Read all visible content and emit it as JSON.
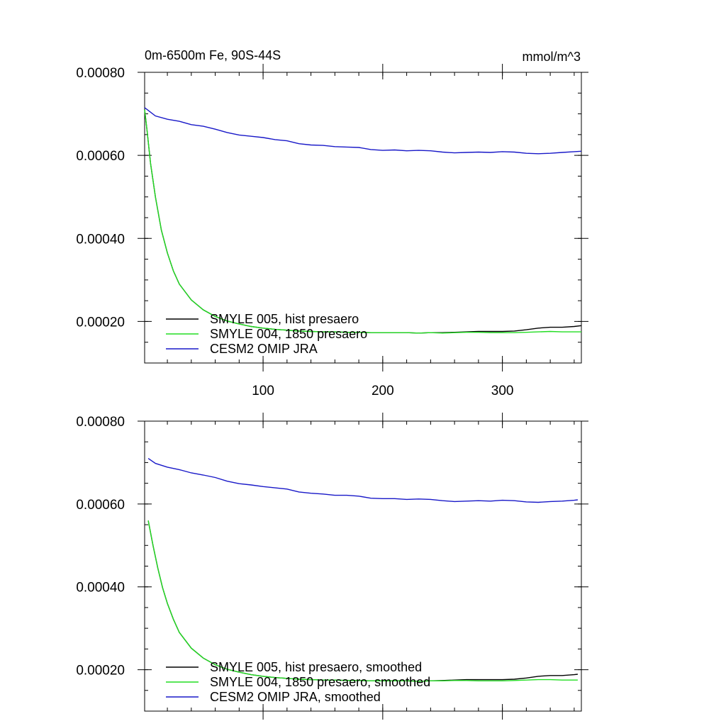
{
  "title_left": "0m-6500m Fe, 90S-44S",
  "title_right": "mmol/m^3",
  "colors": {
    "black": "#000000",
    "green": "#22dd22",
    "blue": "#1818c8"
  },
  "chart_data": [
    {
      "type": "line",
      "title": "0m-6500m Fe, 90S-44S",
      "units": "mmol/m^3",
      "xlim": [
        1,
        366
      ],
      "ylim": [
        0.0001,
        0.0008
      ],
      "x_ticks": [
        100,
        200,
        300
      ],
      "x_tick_labels": [
        "100",
        "200",
        "300"
      ],
      "y_ticks": [
        0.0002,
        0.0004,
        0.0006,
        0.0008
      ],
      "y_tick_labels": [
        "0.00020",
        "0.00040",
        "0.00060",
        "0.00080"
      ],
      "legend_position": "bottom-left",
      "series": [
        {
          "name": "SMYLE 005, hist presaero",
          "color": "#000000",
          "x": [
            1,
            3,
            6,
            10,
            15,
            20,
            25,
            30,
            40,
            50,
            60,
            70,
            80,
            90,
            100,
            110,
            120,
            130,
            140,
            150,
            160,
            170,
            180,
            190,
            200,
            210,
            220,
            230,
            240,
            250,
            260,
            270,
            280,
            290,
            300,
            310,
            320,
            330,
            340,
            350,
            360,
            366
          ],
          "y": [
            0.00071,
            0.00066,
            0.00058,
            0.0005,
            0.00042,
            0.000365,
            0.000322,
            0.00029,
            0.000252,
            0.000228,
            0.000212,
            0.000201,
            0.000194,
            0.000188,
            0.000184,
            0.000181,
            0.000179,
            0.000177,
            0.000176,
            0.000175,
            0.000175,
            0.000174,
            0.000174,
            0.000173,
            0.000173,
            0.000173,
            0.000173,
            0.000172,
            0.000173,
            0.000173,
            0.000174,
            0.000175,
            0.000176,
            0.000176,
            0.000176,
            0.000177,
            0.00018,
            0.000184,
            0.000186,
            0.000186,
            0.000188,
            0.00019
          ]
        },
        {
          "name": "SMYLE 004, 1850 presaero",
          "color": "#22dd22",
          "x": [
            1,
            3,
            6,
            10,
            15,
            20,
            25,
            30,
            40,
            50,
            60,
            70,
            80,
            90,
            100,
            110,
            120,
            130,
            140,
            150,
            160,
            170,
            180,
            190,
            200,
            210,
            220,
            230,
            240,
            250,
            260,
            270,
            280,
            290,
            300,
            310,
            320,
            330,
            340,
            350,
            360,
            366
          ],
          "y": [
            0.00071,
            0.00066,
            0.00058,
            0.0005,
            0.00042,
            0.000365,
            0.000322,
            0.00029,
            0.000252,
            0.000228,
            0.000212,
            0.000201,
            0.000194,
            0.000188,
            0.000184,
            0.000181,
            0.000179,
            0.000177,
            0.000176,
            0.000175,
            0.000175,
            0.000174,
            0.000174,
            0.000173,
            0.000173,
            0.000173,
            0.000173,
            0.000172,
            0.000173,
            0.000172,
            0.000173,
            0.000174,
            0.000174,
            0.000173,
            0.000173,
            0.000173,
            0.000174,
            0.000175,
            0.000176,
            0.000175,
            0.000175,
            0.000175
          ]
        },
        {
          "name": "CESM2 OMIP JRA",
          "color": "#1818c8",
          "x": [
            1,
            10,
            20,
            30,
            40,
            50,
            60,
            70,
            80,
            90,
            100,
            110,
            120,
            130,
            140,
            150,
            160,
            170,
            180,
            190,
            200,
            210,
            220,
            230,
            240,
            250,
            260,
            270,
            280,
            290,
            300,
            310,
            320,
            330,
            340,
            350,
            360,
            366
          ],
          "y": [
            0.000715,
            0.000695,
            0.000687,
            0.000682,
            0.000674,
            0.00067,
            0.000663,
            0.000655,
            0.000649,
            0.000646,
            0.000643,
            0.000638,
            0.000635,
            0.000628,
            0.000625,
            0.000624,
            0.000621,
            0.00062,
            0.000619,
            0.000614,
            0.000612,
            0.000613,
            0.000611,
            0.000612,
            0.000611,
            0.000608,
            0.000606,
            0.000607,
            0.000608,
            0.000607,
            0.000609,
            0.000608,
            0.000605,
            0.000604,
            0.000605,
            0.000607,
            0.000609,
            0.00061
          ]
        }
      ]
    },
    {
      "type": "line",
      "xlim": [
        1,
        366
      ],
      "ylim": [
        0.0001,
        0.0008
      ],
      "x_ticks": [
        100,
        200,
        300
      ],
      "x_tick_labels": [],
      "y_ticks": [
        0.0002,
        0.0004,
        0.0006,
        0.0008
      ],
      "y_tick_labels": [
        "0.00020",
        "0.00040",
        "0.00060",
        "0.00080"
      ],
      "legend_position": "bottom-left",
      "series": [
        {
          "name": "SMYLE 005, hist presaero, smoothed",
          "color": "#000000",
          "x": [
            4,
            8,
            12,
            16,
            20,
            25,
            30,
            40,
            50,
            60,
            70,
            80,
            90,
            100,
            110,
            120,
            130,
            140,
            150,
            160,
            170,
            180,
            190,
            200,
            210,
            220,
            230,
            240,
            250,
            260,
            270,
            280,
            290,
            300,
            310,
            320,
            330,
            340,
            350,
            360,
            363
          ],
          "y": [
            0.00056,
            0.0005,
            0.000445,
            0.000398,
            0.00036,
            0.000322,
            0.00029,
            0.000252,
            0.000228,
            0.000212,
            0.000201,
            0.000194,
            0.000188,
            0.000184,
            0.000181,
            0.000179,
            0.000177,
            0.000176,
            0.000175,
            0.000175,
            0.000174,
            0.000174,
            0.000173,
            0.000173,
            0.000173,
            0.000173,
            0.000172,
            0.000173,
            0.000174,
            0.000175,
            0.000176,
            0.000176,
            0.000176,
            0.000176,
            0.000177,
            0.00018,
            0.000184,
            0.000186,
            0.000186,
            0.000188,
            0.000189
          ]
        },
        {
          "name": "SMYLE 004, 1850 presaero, smoothed",
          "color": "#22dd22",
          "x": [
            4,
            8,
            12,
            16,
            20,
            25,
            30,
            40,
            50,
            60,
            70,
            80,
            90,
            100,
            110,
            120,
            130,
            140,
            150,
            160,
            170,
            180,
            190,
            200,
            210,
            220,
            230,
            240,
            250,
            260,
            270,
            280,
            290,
            300,
            310,
            320,
            330,
            340,
            350,
            360,
            363
          ],
          "y": [
            0.00056,
            0.0005,
            0.000445,
            0.000398,
            0.00036,
            0.000322,
            0.00029,
            0.000252,
            0.000228,
            0.000212,
            0.000201,
            0.000194,
            0.000188,
            0.000184,
            0.000181,
            0.000179,
            0.000177,
            0.000176,
            0.000175,
            0.000175,
            0.000174,
            0.000174,
            0.000173,
            0.000173,
            0.000173,
            0.000173,
            0.000172,
            0.000173,
            0.000173,
            0.000174,
            0.000174,
            0.000173,
            0.000173,
            0.000173,
            0.000174,
            0.000175,
            0.000176,
            0.000176,
            0.000175,
            0.000175,
            0.000175
          ]
        },
        {
          "name": "CESM2 OMIP JRA, smoothed",
          "color": "#1818c8",
          "x": [
            4,
            10,
            20,
            30,
            40,
            50,
            60,
            70,
            80,
            90,
            100,
            110,
            120,
            130,
            140,
            150,
            160,
            170,
            180,
            190,
            200,
            210,
            220,
            230,
            240,
            250,
            260,
            270,
            280,
            290,
            300,
            310,
            320,
            330,
            340,
            350,
            360,
            363
          ],
          "y": [
            0.00071,
            0.000698,
            0.000689,
            0.000683,
            0.000675,
            0.00067,
            0.000664,
            0.000655,
            0.000649,
            0.000646,
            0.000642,
            0.000639,
            0.000636,
            0.000629,
            0.000626,
            0.000624,
            0.000621,
            0.000621,
            0.000619,
            0.000614,
            0.000613,
            0.000613,
            0.000611,
            0.000612,
            0.000611,
            0.000608,
            0.000606,
            0.000607,
            0.000608,
            0.000607,
            0.000609,
            0.000608,
            0.000605,
            0.000604,
            0.000606,
            0.000607,
            0.000609,
            0.00061
          ]
        }
      ]
    }
  ]
}
